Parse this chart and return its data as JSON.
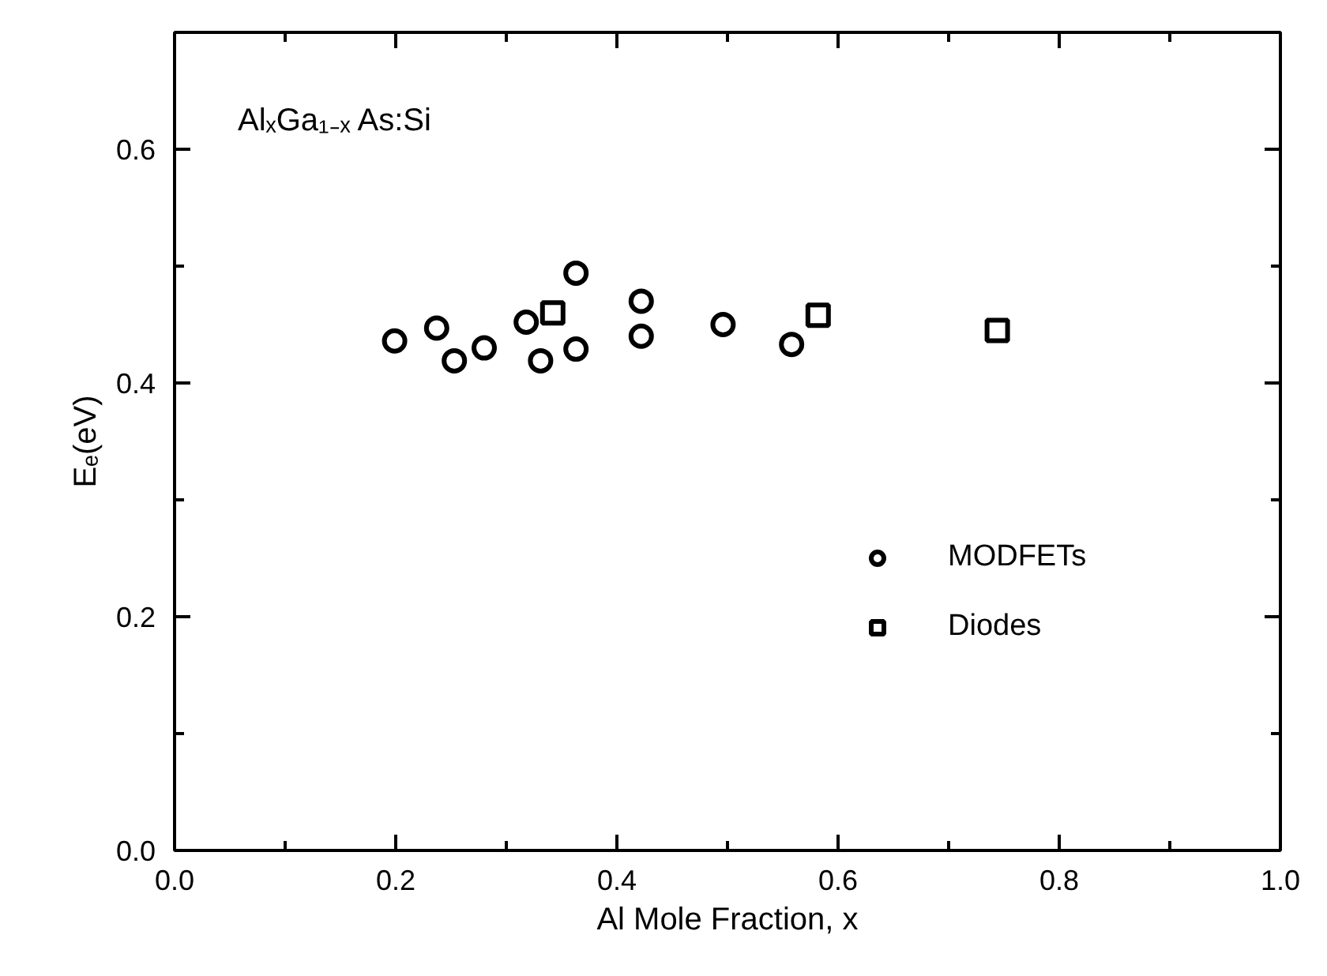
{
  "chart_data": {
    "type": "scatter",
    "xlabel": "Al Mole Fraction, x",
    "ylabel": "Eₑ(eV)",
    "annotations": [
      "AlₓGa₁₋ₓ As:Si"
    ],
    "xlim": [
      0.0,
      1.0
    ],
    "ylim": [
      0.0,
      0.7
    ],
    "xticks": [
      {
        "value": 0.0,
        "label": "0.0"
      },
      {
        "value": 0.1,
        "label": null
      },
      {
        "value": 0.2,
        "label": "0.2"
      },
      {
        "value": 0.3,
        "label": null
      },
      {
        "value": 0.4,
        "label": "0.4"
      },
      {
        "value": 0.5,
        "label": null
      },
      {
        "value": 0.6,
        "label": "0.6"
      },
      {
        "value": 0.7,
        "label": null
      },
      {
        "value": 0.8,
        "label": "0.8"
      },
      {
        "value": 0.9,
        "label": null
      },
      {
        "value": 1.0,
        "label": "1.0"
      }
    ],
    "yticks": [
      {
        "value": 0.0,
        "label": "0.0"
      },
      {
        "value": 0.1,
        "label": null
      },
      {
        "value": 0.2,
        "label": "0.2"
      },
      {
        "value": 0.3,
        "label": null
      },
      {
        "value": 0.4,
        "label": "0.4"
      },
      {
        "value": 0.5,
        "label": null
      },
      {
        "value": 0.6,
        "label": "0.6"
      }
    ],
    "grid": false,
    "legend": "bottom right",
    "series": [
      {
        "name": "MODFETs",
        "color": "#000000",
        "marker": "circle",
        "x": [
          0.199,
          0.237,
          0.253,
          0.28,
          0.318,
          0.331,
          0.363,
          0.363,
          0.422,
          0.422,
          0.496,
          0.558
        ],
        "values": [
          0.436,
          0.447,
          0.419,
          0.43,
          0.452,
          0.419,
          0.494,
          0.429,
          0.47,
          0.44,
          0.45,
          0.433
        ]
      },
      {
        "name": "Diodes",
        "color": "#000000",
        "marker": "square",
        "x": [
          0.342,
          0.582,
          0.744
        ],
        "values": [
          0.46,
          0.458,
          0.445
        ]
      }
    ]
  }
}
